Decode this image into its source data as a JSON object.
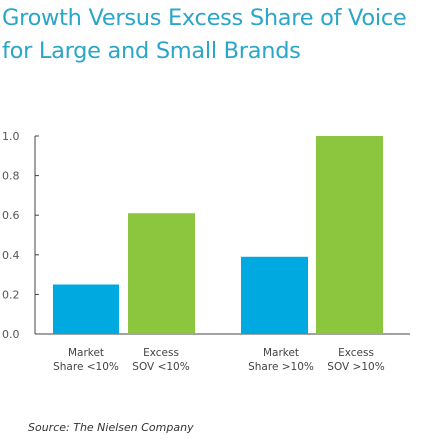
{
  "title_line1": "Growth Versus Excess Share of Voice",
  "title_line2": "for Large and Small Brands",
  "source": "Source: The Nielsen Company",
  "colors": {
    "title": "#2aa6c9",
    "blue": "#00a9e0",
    "green": "#8cc63f"
  },
  "chart_data": {
    "type": "bar",
    "categories": [
      [
        "Market",
        "Share <10%"
      ],
      [
        "Excess",
        "SOV <10%"
      ],
      [
        "Market",
        "Share >10%"
      ],
      [
        "Excess",
        "SOV >10%"
      ]
    ],
    "values": [
      0.25,
      0.61,
      0.39,
      1.0
    ],
    "ylim": [
      0,
      1.0
    ],
    "yticks": [
      "0.0",
      "0.2",
      "0.4",
      "0.6",
      "0.8",
      "1.0"
    ],
    "grid": false,
    "legend": false
  }
}
